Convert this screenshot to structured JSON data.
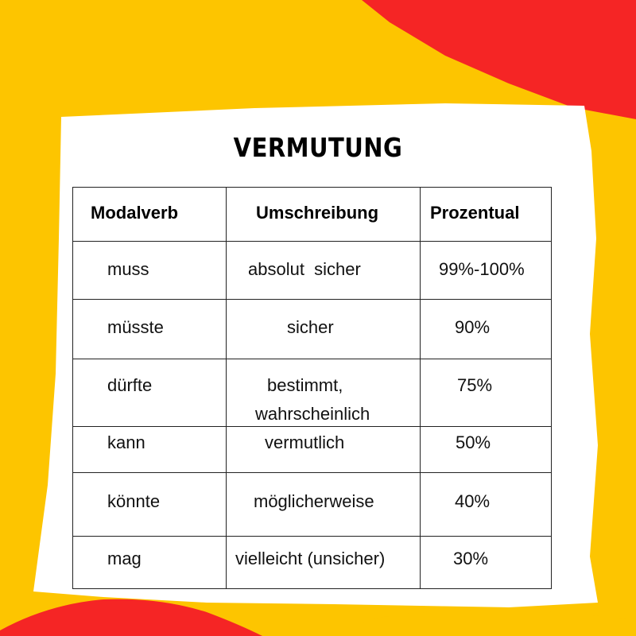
{
  "title": "VERMUTUNG",
  "colors": {
    "background": "#FDC500",
    "accent": "#F52525",
    "card": "#FFFFFF"
  },
  "table": {
    "headers": [
      "Modalverb",
      "Umschreibung",
      "Prozentual"
    ],
    "rows": [
      {
        "verb": "muss",
        "desc": "absolut  sicher",
        "pct": "99%-100%"
      },
      {
        "verb": "müsste",
        "desc": "sicher",
        "pct": "90%"
      },
      {
        "verb": "dürfte",
        "desc": "bestimmt,",
        "desc2": "wahrscheinlich",
        "pct": "75%"
      },
      {
        "verb": "kann",
        "desc": "vermutlich",
        "pct": "50%"
      },
      {
        "verb": "könnte",
        "desc": "möglicherweise",
        "pct": "40%"
      },
      {
        "verb": "mag",
        "desc": "vielleicht (unsicher)",
        "pct": "30%"
      }
    ]
  }
}
